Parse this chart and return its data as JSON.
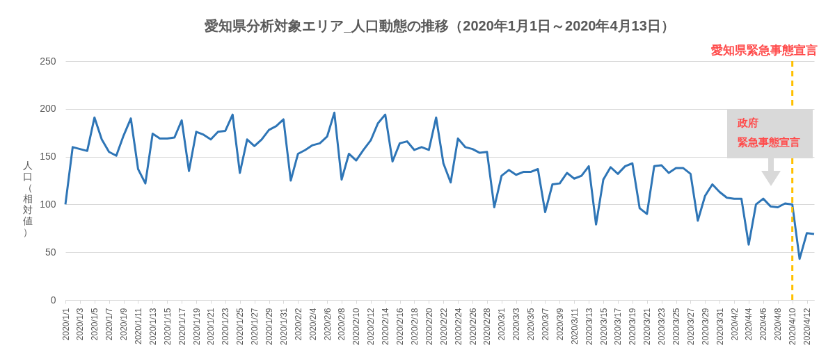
{
  "chart_data": {
    "type": "line",
    "title": "愛知県分析対象エリア_人口動態の推移（2020年1月1日～2020年4月13日）",
    "ylabel": "人口（相対値）",
    "x": [
      "2020-01-01",
      "2020-01-02",
      "2020-01-03",
      "2020-01-04",
      "2020-01-05",
      "2020-01-06",
      "2020-01-07",
      "2020-01-08",
      "2020-01-09",
      "2020-01-10",
      "2020-01-11",
      "2020-01-12",
      "2020-01-13",
      "2020-01-14",
      "2020-01-15",
      "2020-01-16",
      "2020-01-17",
      "2020-01-18",
      "2020-01-19",
      "2020-01-20",
      "2020-01-21",
      "2020-01-22",
      "2020-01-23",
      "2020-01-24",
      "2020-01-25",
      "2020-01-26",
      "2020-01-27",
      "2020-01-28",
      "2020-01-29",
      "2020-01-30",
      "2020-01-31",
      "2020-02-01",
      "2020-02-02",
      "2020-02-03",
      "2020-02-04",
      "2020-02-05",
      "2020-02-06",
      "2020-02-07",
      "2020-02-08",
      "2020-02-09",
      "2020-02-10",
      "2020-02-11",
      "2020-02-12",
      "2020-02-13",
      "2020-02-14",
      "2020-02-15",
      "2020-02-16",
      "2020-02-17",
      "2020-02-18",
      "2020-02-19",
      "2020-02-20",
      "2020-02-21",
      "2020-02-22",
      "2020-02-23",
      "2020-02-24",
      "2020-02-25",
      "2020-02-26",
      "2020-02-27",
      "2020-02-28",
      "2020-02-29",
      "2020-03-01",
      "2020-03-02",
      "2020-03-03",
      "2020-03-04",
      "2020-03-05",
      "2020-03-06",
      "2020-03-07",
      "2020-03-08",
      "2020-03-09",
      "2020-03-10",
      "2020-03-11",
      "2020-03-12",
      "2020-03-13",
      "2020-03-14",
      "2020-03-15",
      "2020-03-16",
      "2020-03-17",
      "2020-03-18",
      "2020-03-19",
      "2020-03-20",
      "2020-03-21",
      "2020-03-22",
      "2020-03-23",
      "2020-03-24",
      "2020-03-25",
      "2020-03-26",
      "2020-03-27",
      "2020-03-28",
      "2020-03-29",
      "2020-03-30",
      "2020-03-31",
      "2020-04-01",
      "2020-04-02",
      "2020-04-03",
      "2020-04-04",
      "2020-04-05",
      "2020-04-06",
      "2020-04-07",
      "2020-04-08",
      "2020-04-09",
      "2020-04-10",
      "2020-04-11",
      "2020-04-12",
      "2020-04-13"
    ],
    "series": [
      {
        "color": "#2e75b6",
        "values": [
          100,
          160,
          158,
          156,
          191,
          168,
          155,
          151,
          172,
          190,
          137,
          122,
          174,
          169,
          169,
          170,
          188,
          135,
          176,
          173,
          168,
          176,
          177,
          194,
          133,
          168,
          161,
          168,
          178,
          182,
          189,
          125,
          153,
          157,
          162,
          164,
          171,
          196,
          126,
          153,
          146,
          157,
          167,
          185,
          194,
          145,
          164,
          166,
          157,
          160,
          157,
          191,
          143,
          123,
          169,
          160,
          158,
          154,
          155,
          97,
          130,
          136,
          131,
          134,
          134,
          137,
          92,
          121,
          122,
          133,
          127,
          130,
          140,
          79,
          126,
          139,
          132,
          140,
          143,
          96,
          90,
          140,
          141,
          133,
          138,
          138,
          132,
          83,
          109,
          121,
          113,
          107,
          106,
          106,
          58,
          100,
          106,
          98,
          97,
          101,
          100,
          43,
          70,
          69
        ]
      }
    ],
    "xlim": [
      "2020-01-01",
      "2020-04-13"
    ],
    "xticks": [
      {
        "value": "2020-01-01",
        "label": "2020/1/1"
      },
      {
        "value": "2020-01-03",
        "label": "2020/1/3"
      },
      {
        "value": "2020-01-05",
        "label": "2020/1/5"
      },
      {
        "value": "2020-01-07",
        "label": "2020/1/7"
      },
      {
        "value": "2020-01-09",
        "label": "2020/1/9"
      },
      {
        "value": "2020-01-11",
        "label": "2020/1/11"
      },
      {
        "value": "2020-01-13",
        "label": "2020/1/13"
      },
      {
        "value": "2020-01-15",
        "label": "2020/1/15"
      },
      {
        "value": "2020-01-17",
        "label": "2020/1/17"
      },
      {
        "value": "2020-01-19",
        "label": "2020/1/19"
      },
      {
        "value": "2020-01-21",
        "label": "2020/1/21"
      },
      {
        "value": "2020-01-23",
        "label": "2020/1/23"
      },
      {
        "value": "2020-01-25",
        "label": "2020/1/25"
      },
      {
        "value": "2020-01-27",
        "label": "2020/1/27"
      },
      {
        "value": "2020-01-29",
        "label": "2020/1/29"
      },
      {
        "value": "2020-01-31",
        "label": "2020/1/31"
      },
      {
        "value": "2020-02-02",
        "label": "2020/2/2"
      },
      {
        "value": "2020-02-04",
        "label": "2020/2/4"
      },
      {
        "value": "2020-02-06",
        "label": "2020/2/6"
      },
      {
        "value": "2020-02-08",
        "label": "2020/2/8"
      },
      {
        "value": "2020-02-10",
        "label": "2020/2/10"
      },
      {
        "value": "2020-02-12",
        "label": "2020/2/12"
      },
      {
        "value": "2020-02-14",
        "label": "2020/2/14"
      },
      {
        "value": "2020-02-16",
        "label": "2020/2/16"
      },
      {
        "value": "2020-02-18",
        "label": "2020/2/18"
      },
      {
        "value": "2020-02-20",
        "label": "2020/2/20"
      },
      {
        "value": "2020-02-22",
        "label": "2020/2/22"
      },
      {
        "value": "2020-02-24",
        "label": "2020/2/24"
      },
      {
        "value": "2020-02-26",
        "label": "2020/2/26"
      },
      {
        "value": "2020-02-28",
        "label": "2020/2/28"
      },
      {
        "value": "2020-03-01",
        "label": "2020/3/1"
      },
      {
        "value": "2020-03-03",
        "label": "2020/3/3"
      },
      {
        "value": "2020-03-05",
        "label": "2020/3/5"
      },
      {
        "value": "2020-03-07",
        "label": "2020/3/7"
      },
      {
        "value": "2020-03-09",
        "label": "2020/3/9"
      },
      {
        "value": "2020-03-11",
        "label": "2020/3/11"
      },
      {
        "value": "2020-03-13",
        "label": "2020/3/13"
      },
      {
        "value": "2020-03-15",
        "label": "2020/3/15"
      },
      {
        "value": "2020-03-17",
        "label": "2020/3/17"
      },
      {
        "value": "2020-03-19",
        "label": "2020/3/19"
      },
      {
        "value": "2020-03-21",
        "label": "2020/3/21"
      },
      {
        "value": "2020-03-23",
        "label": "2020/3/23"
      },
      {
        "value": "2020-03-25",
        "label": "2020/3/25"
      },
      {
        "value": "2020-03-27",
        "label": "2020/3/27"
      },
      {
        "value": "2020-03-29",
        "label": "2020/3/29"
      },
      {
        "value": "2020-03-31",
        "label": "2020/3/31"
      },
      {
        "value": "2020-04-02",
        "label": "2020/4/2"
      },
      {
        "value": "2020-04-04",
        "label": "2020/4/4"
      },
      {
        "value": "2020-04-06",
        "label": "2020/4/6"
      },
      {
        "value": "2020-04-08",
        "label": "2020/4/8"
      },
      {
        "value": "2020-04-10",
        "label": "2020/4/10"
      },
      {
        "value": "2020-04-12",
        "label": "2020/4/12"
      }
    ],
    "ylim": [
      0,
      250
    ],
    "yticks": [
      0,
      50,
      100,
      150,
      200,
      250
    ],
    "grid": "y",
    "ref_lines": [
      {
        "axis": "x",
        "value": "2020-04-10",
        "label": "愛知県緊急事態宣言",
        "color": "#ffc000",
        "line_style": "dashed"
      }
    ],
    "annotations": [
      "政府",
      "緊急事態宣言"
    ]
  }
}
